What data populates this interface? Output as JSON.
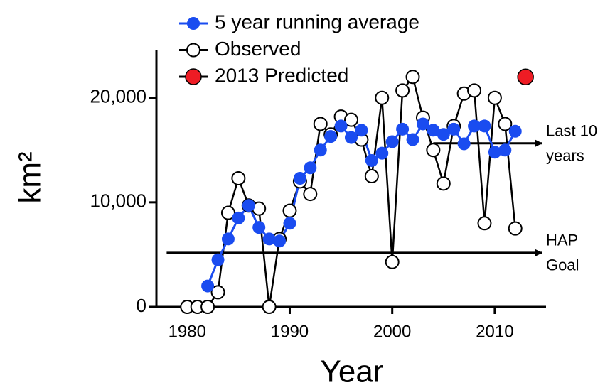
{
  "chart_data": {
    "type": "line",
    "x_label": "Year",
    "y_label": "km²",
    "x": [
      1980,
      1981,
      1982,
      1983,
      1984,
      1985,
      1986,
      1987,
      1988,
      1989,
      1990,
      1991,
      1992,
      1993,
      1994,
      1995,
      1996,
      1997,
      1998,
      1999,
      2000,
      2001,
      2002,
      2003,
      2004,
      2005,
      2006,
      2007,
      2008,
      2009,
      2010,
      2011,
      2012,
      2013
    ],
    "series": [
      {
        "name": "5 year running average",
        "color": "#1a4cf0",
        "marker": "filled",
        "values": [
          null,
          null,
          2000,
          4500,
          6500,
          8500,
          9700,
          7600,
          6500,
          6300,
          8000,
          12300,
          13300,
          15000,
          16300,
          17300,
          16200,
          16900,
          14000,
          14700,
          15800,
          17000,
          16000,
          17500,
          16900,
          16500,
          17000,
          15600,
          17300,
          17300,
          14800,
          15000,
          16800,
          null
        ]
      },
      {
        "name": "Observed",
        "color": "#000000",
        "marker": "open",
        "values": [
          0,
          0,
          0,
          1400,
          9000,
          12300,
          9700,
          9400,
          0,
          6500,
          9200,
          12000,
          10800,
          17500,
          16500,
          18200,
          17900,
          16000,
          12500,
          20000,
          4300,
          20700,
          22000,
          18100,
          15000,
          11800,
          17300,
          20400,
          20700,
          8000,
          20000,
          17500,
          7500,
          null
        ]
      },
      {
        "name": "2013 Predicted",
        "color": "#ee1c24",
        "marker": "filled-outlined",
        "values": [
          null,
          null,
          null,
          null,
          null,
          null,
          null,
          null,
          null,
          null,
          null,
          null,
          null,
          null,
          null,
          null,
          null,
          null,
          null,
          null,
          null,
          null,
          null,
          null,
          null,
          null,
          null,
          null,
          null,
          null,
          null,
          null,
          null,
          22000
        ]
      }
    ],
    "xlim": [
      1977,
      2015
    ],
    "xticks": [
      1980,
      1990,
      2000,
      2010
    ],
    "ylim": [
      0,
      24600
    ],
    "yticks": [
      0,
      {
        "value": 10000,
        "label": "10,000"
      },
      {
        "value": 20000,
        "label": "20,000"
      }
    ],
    "reference_arrows": [
      {
        "label": [
          "Last 10",
          "years"
        ],
        "y": 15650,
        "x_start": 2004
      },
      {
        "label": [
          "HAP",
          "Goal"
        ],
        "y": 5170,
        "x_start": 1978
      }
    ]
  }
}
